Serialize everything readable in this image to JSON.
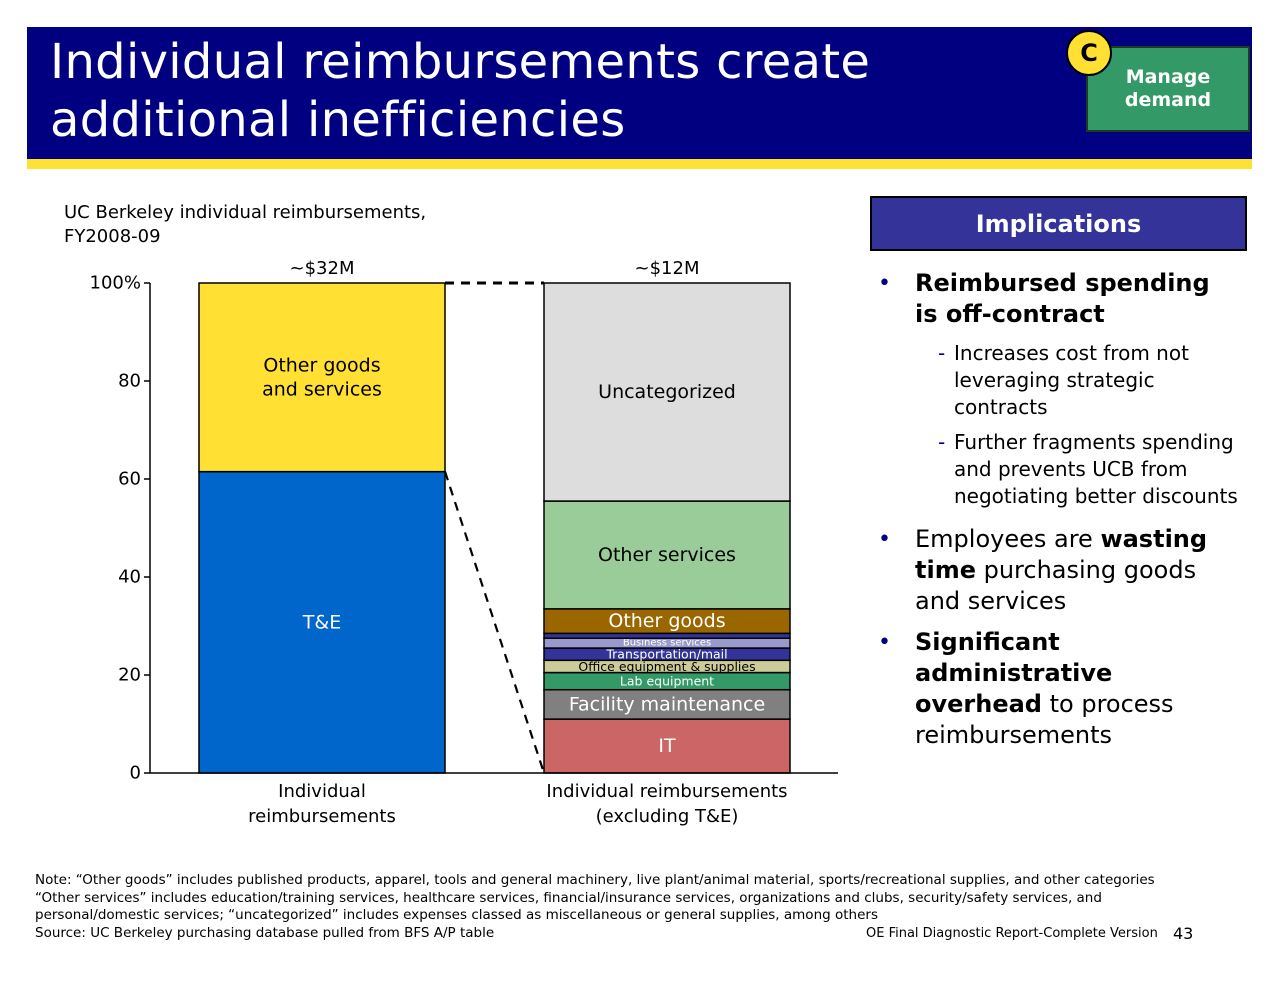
{
  "header": {
    "title_line1": "Individual reimbursements create",
    "title_line2": "additional inefficiencies",
    "badge_letter": "C",
    "badge_line1": "Manage",
    "badge_line2": "demand",
    "bg_color": "#000080",
    "stripe_color": "#ffe033",
    "badge_color": "#339966"
  },
  "chart_data": {
    "type": "bar",
    "subtype": "stacked-100",
    "title_line1": "UC Berkeley individual reimbursements,",
    "title_line2": "FY2008-09",
    "y_ticks": [
      "0",
      "20",
      "40",
      "60",
      "80",
      "100%"
    ],
    "ylim": [
      0,
      100
    ],
    "bars": [
      {
        "category": "Individual reimbursements",
        "label_line1": "Individual",
        "label_line2": "reimbursements",
        "total_label": "~$32M",
        "segments": [
          {
            "name": "T&E",
            "value": 61.5,
            "color": "#0066cc",
            "text_color": "#ffffff",
            "label_size": "large"
          },
          {
            "name": "Other goods and services",
            "name_line1": "Other goods",
            "name_line2": "and services",
            "value": 38.5,
            "color": "#ffe033",
            "text_color": "#000000",
            "label_size": "large"
          }
        ]
      },
      {
        "category": "Individual reimbursements (excluding T&E)",
        "label_line1": "Individual reimbursements",
        "label_line2": "(excluding T&E)",
        "total_label": "~$12M",
        "segments": [
          {
            "name": "IT",
            "value": 11,
            "color": "#cc6666",
            "text_color": "#ffffff",
            "label_size": "large"
          },
          {
            "name": "Facility maintenance",
            "value": 6,
            "color": "#808080",
            "text_color": "#ffffff",
            "label_size": "large"
          },
          {
            "name": "Lab equipment",
            "value": 3.5,
            "color": "#339966",
            "text_color": "#ffffff",
            "label_size": "small"
          },
          {
            "name": "Office equipment & supplies",
            "value": 2.5,
            "color": "#cccc99",
            "text_color": "#000000",
            "label_size": "small"
          },
          {
            "name": "Transportation/mail",
            "value": 2.5,
            "color": "#333399",
            "text_color": "#ffffff",
            "label_size": "small"
          },
          {
            "name": "Business services",
            "value": 2,
            "color": "#9999cc",
            "text_color": "#ffffff",
            "label_size": "tiny"
          },
          {
            "name": "",
            "value": 1,
            "color": "#333399",
            "text_color": "#ffffff",
            "label_size": "none"
          },
          {
            "name": "Other goods",
            "value": 5,
            "color": "#996600",
            "text_color": "#ffffff",
            "label_size": "large"
          },
          {
            "name": "Other services",
            "value": 22,
            "color": "#99cc99",
            "text_color": "#000000",
            "label_size": "large"
          },
          {
            "name": "Uncategorized",
            "value": 44.5,
            "color": "#dddddd",
            "text_color": "#000000",
            "label_size": "large"
          }
        ]
      }
    ]
  },
  "implications": {
    "heading": "Implications",
    "b1_bold": "Reimbursed spending is off-contract",
    "b1_subs": [
      "Increases cost from not leveraging strategic contracts",
      "Further fragments spending and prevents UCB from negotiating better discounts"
    ],
    "b2_pre": "Employees are ",
    "b2_bold": "wasting time",
    "b2_post": " purchasing goods and services",
    "b3_bold": "Significant administrative overhead",
    "b3_post": " to process reimbursements"
  },
  "notes": {
    "line1": "Note: “Other goods” includes published products, apparel, tools and general machinery, live plant/animal material, sports/recreational supplies, and other categories",
    "line2": "“Other services” includes education/training services, healthcare services, financial/insurance services, organizations and clubs, security/safety services, and",
    "line3": "personal/domestic services; “uncategorized” includes expenses classed as miscellaneous or general supplies, among others",
    "source": "Source: UC Berkeley purchasing database pulled from BFS A/P table"
  },
  "footer": {
    "report": "OE Final Diagnostic Report-Complete Version",
    "page": "43"
  }
}
